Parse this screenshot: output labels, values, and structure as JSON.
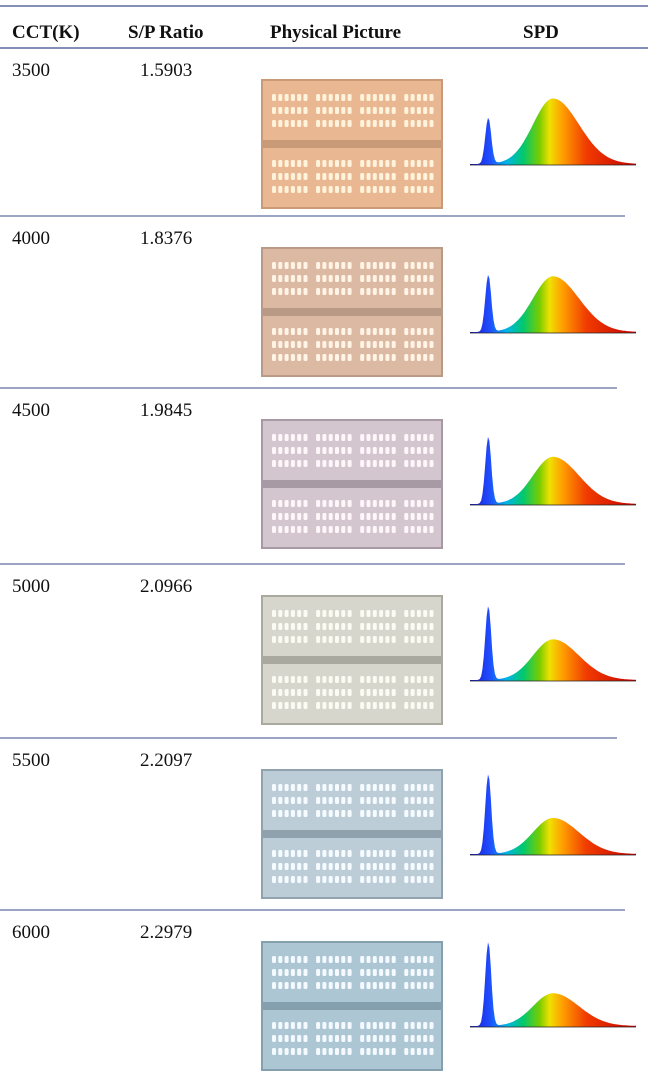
{
  "table": {
    "headers": [
      "CCT(K)",
      "S/P Ratio",
      "Physical Picture",
      "SPD"
    ],
    "rows": [
      [
        3500,
        1.5903
      ],
      [
        4000,
        1.8376
      ],
      [
        4500,
        1.9845
      ],
      [
        5000,
        2.0966
      ],
      [
        5500,
        2.2097
      ],
      [
        6000,
        2.2979
      ]
    ]
  }
}
